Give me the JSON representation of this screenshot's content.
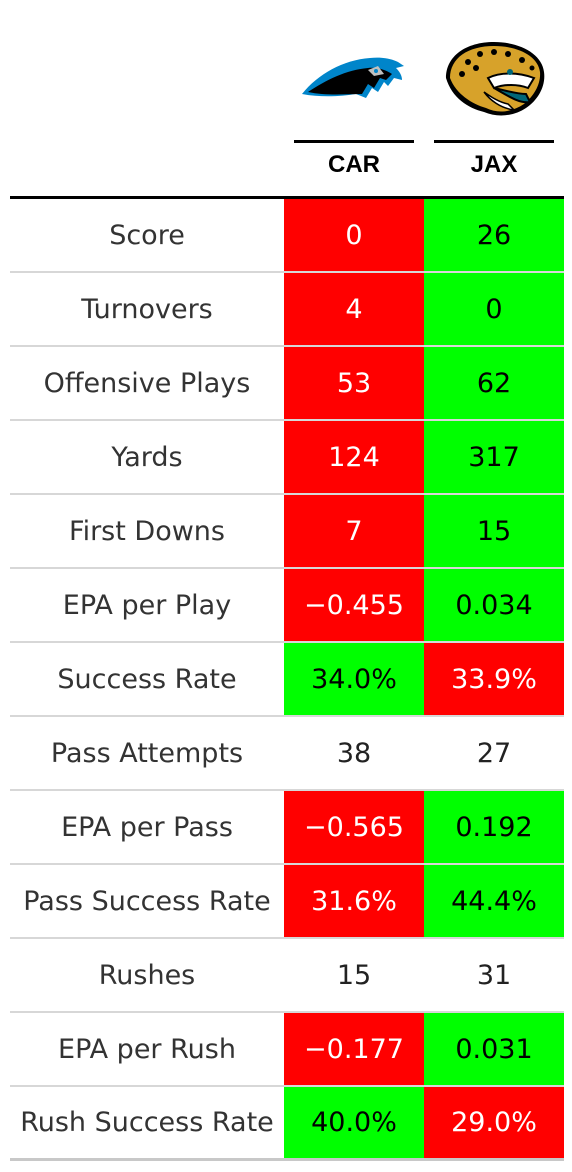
{
  "teams": [
    {
      "abbr": "CAR",
      "logo": "panthers-logo-icon"
    },
    {
      "abbr": "JAX",
      "logo": "jaguars-logo-icon"
    }
  ],
  "colors": {
    "worse": "#ff0000",
    "better": "#00ff00",
    "neutral": "#ffffff"
  },
  "rows": [
    {
      "label": "Score",
      "car": "0",
      "jax": "26",
      "car_status": "red",
      "jax_status": "green"
    },
    {
      "label": "Turnovers",
      "car": "4",
      "jax": "0",
      "car_status": "red",
      "jax_status": "green"
    },
    {
      "label": "Offensive Plays",
      "car": "53",
      "jax": "62",
      "car_status": "red",
      "jax_status": "green"
    },
    {
      "label": "Yards",
      "car": "124",
      "jax": "317",
      "car_status": "red",
      "jax_status": "green"
    },
    {
      "label": "First Downs",
      "car": "7",
      "jax": "15",
      "car_status": "red",
      "jax_status": "green"
    },
    {
      "label": "EPA per Play",
      "car": "−0.455",
      "jax": "0.034",
      "car_status": "red",
      "jax_status": "green"
    },
    {
      "label": "Success Rate",
      "car": "34.0%",
      "jax": "33.9%",
      "car_status": "green",
      "jax_status": "red"
    },
    {
      "label": "Pass Attempts",
      "car": "38",
      "jax": "27",
      "car_status": "neutral",
      "jax_status": "neutral"
    },
    {
      "label": "EPA per Pass",
      "car": "−0.565",
      "jax": "0.192",
      "car_status": "red",
      "jax_status": "green"
    },
    {
      "label": "Pass Success Rate",
      "car": "31.6%",
      "jax": "44.4%",
      "car_status": "red",
      "jax_status": "green"
    },
    {
      "label": "Rushes",
      "car": "15",
      "jax": "31",
      "car_status": "neutral",
      "jax_status": "neutral"
    },
    {
      "label": "EPA per Rush",
      "car": "−0.177",
      "jax": "0.031",
      "car_status": "red",
      "jax_status": "green"
    },
    {
      "label": "Rush Success Rate",
      "car": "40.0%",
      "jax": "29.0%",
      "car_status": "green",
      "jax_status": "red"
    }
  ]
}
